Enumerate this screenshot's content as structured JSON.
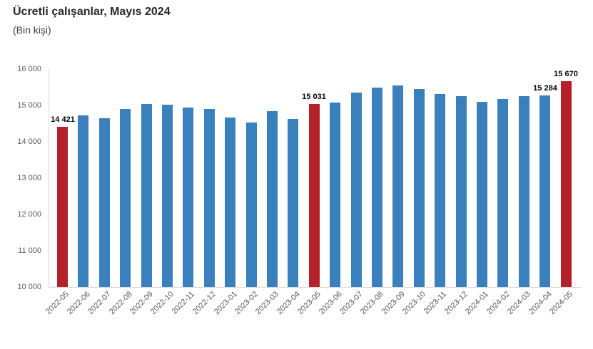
{
  "chart_data": {
    "type": "bar",
    "title": "Ücretli çalışanlar, Mayıs 2024",
    "subtitle": "(Bin kişi)",
    "xlabel": "",
    "ylabel": "",
    "ylim": [
      10000,
      16000
    ],
    "grid": false,
    "legend": "none",
    "yticks": [
      "10 000",
      "11 000",
      "12 000",
      "13 000",
      "14 000",
      "15 000",
      "16 000"
    ],
    "categories": [
      "2022-05",
      "2022-06",
      "2022-07",
      "2022-08",
      "2022-09",
      "2022-10",
      "2022-11",
      "2022-12",
      "2023-01",
      "2023-02",
      "2023-03",
      "2023-04",
      "2023-05",
      "2023-06",
      "2023-07",
      "2023-08",
      "2023-09",
      "2023-10",
      "2023-11",
      "2023-12",
      "2024-01",
      "2024-02",
      "2024-03",
      "2024-04",
      "2024-05"
    ],
    "values": [
      14421,
      14730,
      14645,
      14910,
      15040,
      15010,
      14945,
      14905,
      14665,
      14535,
      14850,
      14635,
      15031,
      15080,
      15355,
      15490,
      15545,
      15445,
      15320,
      15250,
      15105,
      15170,
      15250,
      15284,
      15670
    ],
    "annotations": [
      "14 421",
      null,
      null,
      null,
      null,
      null,
      null,
      null,
      null,
      null,
      null,
      null,
      "15 031",
      null,
      null,
      null,
      null,
      null,
      null,
      null,
      null,
      null,
      null,
      "15 284",
      "15 670"
    ],
    "highlight_indices": [
      0,
      12,
      24
    ],
    "colors": {
      "bar": "#3a80bc",
      "highlight": "#b42128",
      "title_text": "#23272f",
      "subtitle_text": "#3f3f3f",
      "axis_text": "#595959",
      "axis_line": "#d9d9d9",
      "annotation_text": "#000000"
    }
  }
}
